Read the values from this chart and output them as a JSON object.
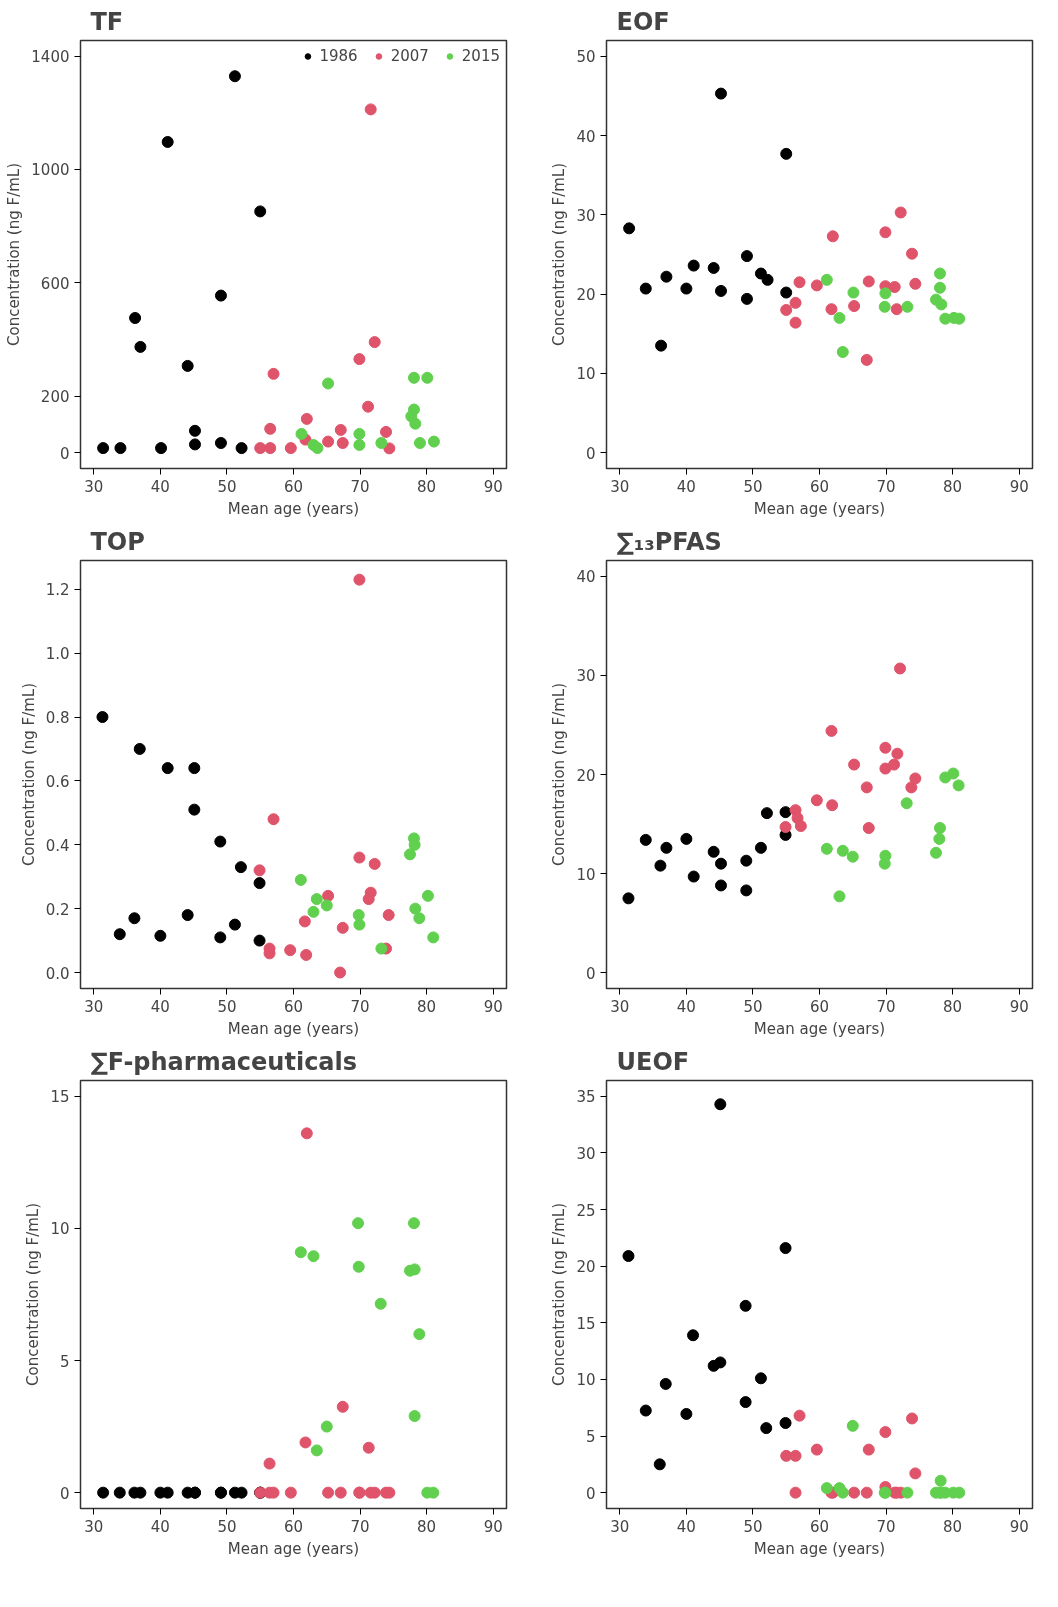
{
  "chart_data": [
    {
      "type": "scatter",
      "title": "TF",
      "xlabel": "Mean age (years)",
      "ylabel": "Concentration (ng F/mL)",
      "xlim": [
        28,
        92
      ],
      "ylim": [
        -55,
        1455
      ],
      "xticks": [
        30,
        40,
        50,
        60,
        70,
        80,
        90
      ],
      "yticks": [
        0,
        200,
        600,
        1000,
        1400
      ],
      "marker": "circle",
      "grid": false,
      "legend": "top right",
      "series": [
        {
          "name": "1986",
          "color": "#000000",
          "x": [
            31.4,
            34,
            36.2,
            37,
            40.1,
            41.1,
            44.1,
            45.2,
            45.2,
            49.1,
            49.1,
            51.2,
            52.2,
            55
          ],
          "values": [
            17,
            17,
            476,
            374,
            17,
            1097,
            307,
            78,
            30,
            555,
            35,
            1329,
            17,
            852
          ]
        },
        {
          "name": "2007",
          "color": "#df536b",
          "x": [
            55,
            56.5,
            56.5,
            57,
            59.6,
            62,
            61.8,
            65.2,
            67.1,
            67.4,
            69.9,
            71.2,
            71.6,
            72.2,
            73.9,
            74.4
          ],
          "values": [
            17,
            17,
            85,
            279,
            17,
            120,
            47,
            40,
            81,
            35,
            331,
            163,
            1212,
            391,
            74,
            16
          ]
        },
        {
          "name": "2015",
          "color": "#61d04f",
          "x": [
            61.2,
            63,
            63.6,
            65.2,
            69.9,
            69.9,
            73.2,
            78.1,
            80.1,
            77.7,
            78.1,
            78.3,
            79,
            81.1
          ],
          "values": [
            67,
            28,
            17,
            245,
            67,
            28,
            35,
            265,
            265,
            129,
            153,
            103,
            35,
            40
          ]
        }
      ]
    },
    {
      "type": "scatter",
      "title": "EOF",
      "xlabel": "Mean age (years)",
      "ylabel": "Concentration (ng F/mL)",
      "xlim": [
        28,
        92
      ],
      "ylim": [
        -2,
        52
      ],
      "xticks": [
        30,
        40,
        50,
        60,
        70,
        80,
        90
      ],
      "yticks": [
        0,
        10,
        20,
        30,
        40,
        50
      ],
      "marker": "circle",
      "grid": false,
      "series": [
        {
          "color": "#000000",
          "x": [
            31.4,
            33.9,
            36.2,
            37,
            40,
            41.1,
            44.1,
            45.2,
            45.2,
            49.1,
            49.1,
            51.2,
            52.2,
            55,
            55
          ],
          "values": [
            28.3,
            20.7,
            13.5,
            22.2,
            20.7,
            23.6,
            23.3,
            45.3,
            20.4,
            24.8,
            19.4,
            22.6,
            21.8,
            37.7,
            20.2
          ]
        },
        {
          "color": "#df536b",
          "x": [
            55,
            56.4,
            56.4,
            57,
            59.6,
            62,
            61.8,
            65.2,
            67.4,
            67.1,
            69.9,
            69.9,
            71.3,
            71.6,
            72.2,
            73.9,
            74.4
          ],
          "values": [
            18,
            18.9,
            16.4,
            21.5,
            21.1,
            27.3,
            18.1,
            18.5,
            21.6,
            11.7,
            27.8,
            21,
            20.9,
            18.1,
            30.3,
            25.1,
            21.3
          ]
        },
        {
          "color": "#61d04f",
          "x": [
            61.1,
            63,
            63.5,
            65.1,
            69.8,
            69.9,
            73.2,
            78.1,
            78.1,
            77.5,
            78.3,
            78.9,
            80.2,
            81
          ],
          "values": [
            21.8,
            17,
            12.7,
            20.2,
            18.4,
            20.1,
            18.4,
            22.6,
            20.8,
            19.3,
            18.7,
            16.9,
            17,
            16.9
          ]
        }
      ]
    },
    {
      "type": "scatter",
      "title": "TOP",
      "xlabel": "Mean age (years)",
      "ylabel": "Concentration (ng F/mL)",
      "xlim": [
        28,
        92
      ],
      "ylim": [
        -0.05,
        1.29
      ],
      "xticks": [
        30,
        40,
        50,
        60,
        70,
        80,
        90
      ],
      "yticks": [
        {
          "value": 0,
          "label": "0.0"
        },
        0.2,
        0.4,
        0.6,
        0.8,
        {
          "value": 1,
          "label": "1.0"
        },
        1.2
      ],
      "marker": "circle",
      "grid": false,
      "series": [
        {
          "color": "#000000",
          "x": [
            31.3,
            33.9,
            36.1,
            36.9,
            40,
            41.1,
            44.1,
            45.1,
            45.1,
            49,
            49,
            51.2,
            52.1,
            54.9,
            54.9
          ],
          "values": [
            0.8,
            0.12,
            0.17,
            0.7,
            0.115,
            0.64,
            0.18,
            0.64,
            0.51,
            0.41,
            0.11,
            0.15,
            0.33,
            0.28,
            0.1
          ]
        },
        {
          "color": "#df536b",
          "x": [
            54.9,
            56.4,
            56.4,
            57,
            59.5,
            61.7,
            61.9,
            65.2,
            67.4,
            67,
            69.9,
            69.9,
            71.6,
            71.3,
            72.2,
            73.9,
            74.3
          ],
          "values": [
            0.32,
            0.075,
            0.06,
            0.48,
            0.07,
            0.16,
            0.055,
            0.24,
            0.14,
            0.0,
            1.23,
            0.36,
            0.25,
            0.23,
            0.34,
            0.075,
            0.18
          ]
        },
        {
          "color": "#61d04f",
          "x": [
            61.1,
            63,
            63.5,
            65,
            69.8,
            69.9,
            73.2,
            77.5,
            78.1,
            78.2,
            78.3,
            78.9,
            80.2,
            81
          ],
          "values": [
            0.29,
            0.19,
            0.23,
            0.21,
            0.18,
            0.15,
            0.075,
            0.37,
            0.42,
            0.4,
            0.2,
            0.17,
            0.24,
            0.11
          ]
        }
      ]
    },
    {
      "type": "scatter",
      "title": "∑₁₃PFAS",
      "xlabel": "Mean age (years)",
      "ylabel": "Concentration (ng F/mL)",
      "xlim": [
        28,
        92
      ],
      "ylim": [
        -1.6,
        41.6
      ],
      "xticks": [
        30,
        40,
        50,
        60,
        70,
        80,
        90
      ],
      "yticks": [
        0,
        10,
        20,
        30,
        40
      ],
      "marker": "circle",
      "grid": false,
      "series": [
        {
          "color": "#000000",
          "x": [
            31.3,
            33.9,
            36.1,
            37,
            40,
            41.1,
            44.1,
            45.2,
            45.2,
            49,
            49,
            51.2,
            52.1,
            54.9,
            54.9
          ],
          "values": [
            7.5,
            13.4,
            10.8,
            12.6,
            13.5,
            9.7,
            12.2,
            11,
            8.8,
            11.3,
            8.3,
            12.6,
            16.1,
            16.2,
            13.9
          ]
        },
        {
          "color": "#df536b",
          "x": [
            54.9,
            56.4,
            56.7,
            57.2,
            59.6,
            61.8,
            61.9,
            65.2,
            67.1,
            67.4,
            69.9,
            69.9,
            71.2,
            71.7,
            72.1,
            73.8,
            74.4
          ],
          "values": [
            14.7,
            16.4,
            15.6,
            14.8,
            17.4,
            24.4,
            16.9,
            21,
            18.7,
            14.6,
            22.7,
            20.6,
            21,
            22.1,
            30.7,
            18.7,
            19.6
          ]
        },
        {
          "color": "#61d04f",
          "x": [
            61.1,
            63,
            63.5,
            65,
            69.8,
            69.9,
            73.1,
            77.5,
            78,
            78.1,
            78.9,
            80.1,
            80.9
          ],
          "values": [
            12.5,
            7.7,
            12.3,
            11.7,
            11,
            11.8,
            17.1,
            12.1,
            13.5,
            14.6,
            19.7,
            20.1,
            18.9
          ]
        }
      ]
    },
    {
      "type": "scatter",
      "title": "∑F-pharmaceuticals",
      "xlabel": "Mean age (years)",
      "ylabel": "Concentration (ng F/mL)",
      "xlim": [
        28,
        92
      ],
      "ylim": [
        -0.6,
        15.6
      ],
      "xticks": [
        30,
        40,
        50,
        60,
        70,
        80,
        90
      ],
      "yticks": [
        0,
        5,
        10,
        15
      ],
      "marker": "circle",
      "grid": false,
      "series": [
        {
          "color": "#000000",
          "x": [
            31.4,
            33.9,
            36.1,
            37,
            40,
            41.1,
            44.1,
            45.2,
            45.2,
            49.1,
            49.1,
            51.2,
            52.2,
            55,
            55
          ],
          "values": [
            0,
            0,
            0,
            0,
            0,
            0,
            0,
            0,
            0,
            0,
            0,
            0,
            0,
            0,
            0
          ]
        },
        {
          "color": "#df536b",
          "x": [
            55,
            56.4,
            56.4,
            57,
            59.6,
            62,
            61.8,
            65.2,
            67.4,
            67.1,
            69.9,
            69.9,
            71.3,
            71.6,
            72.2,
            73.9,
            74.4
          ],
          "values": [
            0,
            1.1,
            0,
            0,
            0,
            13.6,
            1.9,
            0,
            3.25,
            0,
            0,
            0,
            1.7,
            0,
            0,
            0,
            0
          ]
        },
        {
          "color": "#61d04f",
          "x": [
            61.1,
            63,
            63.5,
            65,
            69.7,
            69.8,
            73.1,
            78.1,
            77.5,
            78.2,
            78.2,
            78.9,
            80.1,
            81
          ],
          "values": [
            9.1,
            8.95,
            1.6,
            2.5,
            10.2,
            8.55,
            7.15,
            10.2,
            8.4,
            8.45,
            2.9,
            6,
            0,
            0
          ]
        }
      ]
    },
    {
      "type": "scatter",
      "title": "UEOF",
      "xlabel": "Mean age (years)",
      "ylabel": "Concentration (ng F/mL)",
      "xlim": [
        28,
        92
      ],
      "ylim": [
        -1.4,
        36.4
      ],
      "xticks": [
        30,
        40,
        50,
        60,
        70,
        80,
        90
      ],
      "yticks": [
        0,
        5,
        10,
        15,
        20,
        25,
        30,
        35
      ],
      "marker": "circle",
      "grid": false,
      "series": [
        {
          "color": "#000000",
          "x": [
            31.3,
            33.9,
            36,
            36.9,
            40,
            41,
            44.1,
            45.1,
            45.1,
            48.9,
            48.9,
            51.2,
            52,
            54.9,
            54.9
          ],
          "values": [
            20.9,
            7.25,
            2.5,
            9.6,
            6.95,
            13.9,
            11.2,
            11.5,
            34.3,
            8,
            16.5,
            10.1,
            5.7,
            21.6,
            6.15
          ]
        },
        {
          "color": "#df536b",
          "x": [
            55,
            56.4,
            56.4,
            57,
            59.6,
            62,
            61.8,
            65.2,
            67.4,
            67.1,
            69.9,
            69.9,
            71.3,
            71.6,
            72.2,
            73.9,
            74.4
          ],
          "values": [
            3.25,
            3.25,
            0,
            6.8,
            3.8,
            0,
            0,
            0,
            3.8,
            0,
            5.35,
            0.5,
            0,
            0,
            0,
            6.55,
            1.7
          ]
        },
        {
          "color": "#61d04f",
          "x": [
            61.1,
            63,
            63.5,
            65,
            69.8,
            69.9,
            73.2,
            78.2,
            77.5,
            78.1,
            78.3,
            78.9,
            80.1,
            81
          ],
          "values": [
            0.4,
            0.4,
            0,
            5.9,
            0,
            0,
            0,
            1.05,
            0,
            0,
            0,
            0,
            0,
            0
          ]
        }
      ]
    }
  ]
}
